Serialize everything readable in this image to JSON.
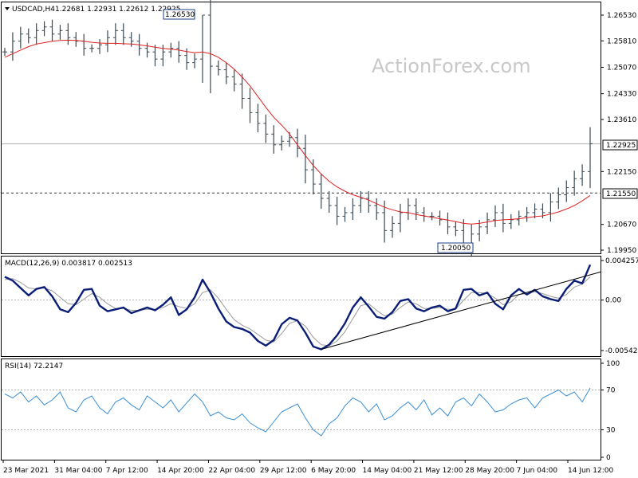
{
  "header": {
    "symbol": "USDCAD,H4",
    "ohlc": "1.22681 1.22931 1.22612 1.22925"
  },
  "watermark": "ActionForex.com",
  "colors": {
    "price_bars": "#3b4a54",
    "ma": "#e02020",
    "macd_line": "#0a1e78",
    "macd_signal": "#9a9a9a",
    "trendline": "#000000",
    "rsi": "#3a8fd6",
    "grid": "#b0b0b0"
  },
  "chart_data": [
    {
      "type": "line",
      "panel": "price",
      "x_tick_labels": [
        "23 Mar 2021",
        "31 Mar 04:00",
        "7 Apr 12:00",
        "14 Apr 20:00",
        "22 Apr 04:00",
        "29 Apr 12:00",
        "6 May 20:00",
        "14 May 04:00",
        "21 May 12:00",
        "28 May 20:00",
        "7 Jun 04:00",
        "14 Jun 12:00"
      ],
      "y_tick_labels": [
        "1.26530",
        "1.25810",
        "1.25070",
        "1.24330",
        "1.23610",
        "1.22925",
        "1.22150",
        "1.21550",
        "1.20670",
        "1.19950"
      ],
      "ylim": [
        1.1995,
        1.2653
      ],
      "annotations": {
        "high": "1.26530",
        "low": "1.20050",
        "support": "1.21550",
        "current": "1.22925"
      },
      "series": [
        {
          "values": [
            1.255,
            1.258,
            1.26,
            1.259,
            1.261,
            1.262,
            1.26,
            1.261,
            1.259,
            1.258,
            1.256,
            1.256,
            1.257,
            1.259,
            1.261,
            1.259,
            1.258,
            1.256,
            1.255,
            1.253,
            1.255,
            1.256,
            1.254,
            1.252,
            1.253,
            1.2653,
            1.251,
            1.25,
            1.248,
            1.246,
            1.242,
            1.238,
            1.235,
            1.232,
            1.229,
            1.23,
            1.231,
            1.228,
            1.222,
            1.218,
            1.214,
            1.212,
            1.209,
            1.21,
            1.212,
            1.214,
            1.212,
            1.21,
            1.205,
            1.207,
            1.21,
            1.212,
            1.21,
            1.209,
            1.209,
            1.208,
            1.206,
            1.205,
            1.2005,
            1.204,
            1.206,
            1.208,
            1.21,
            1.207,
            1.208,
            1.209,
            1.21,
            1.211,
            1.21,
            1.213,
            1.215,
            1.217,
            1.2195,
            1.2215,
            1.2293
          ]
        },
        {
          "values": [
            1.2535,
            1.2545,
            1.2555,
            1.2565,
            1.2572,
            1.2576,
            1.258,
            1.2582,
            1.2583,
            1.2582,
            1.258,
            1.2577,
            1.2575,
            1.2574,
            1.2574,
            1.2573,
            1.2572,
            1.257,
            1.2567,
            1.2563,
            1.256,
            1.2558,
            1.2555,
            1.2551,
            1.2548,
            1.255,
            1.2545,
            1.2535,
            1.252,
            1.2502,
            1.248,
            1.2455,
            1.2425,
            1.2395,
            1.2367,
            1.2345,
            1.232,
            1.229,
            1.226,
            1.2232,
            1.2208,
            1.2188,
            1.2172,
            1.216,
            1.215,
            1.2143,
            1.2135,
            1.2125,
            1.2115,
            1.2108,
            1.2102,
            1.21,
            1.2095,
            1.2091,
            1.2087,
            1.2083,
            1.2079,
            1.2075,
            1.207,
            1.2068,
            1.207,
            1.2074,
            1.2078,
            1.208,
            1.2081,
            1.2083,
            1.2086,
            1.2089,
            1.2091,
            1.2096,
            1.2102,
            1.211,
            1.212,
            1.2133,
            1.2148
          ]
        }
      ]
    },
    {
      "type": "line",
      "panel": "macd",
      "label": "MACD(12,26,9) 0.003817 0.002513",
      "y_tick_labels": [
        "0.004257",
        "0.00",
        "-0.005426"
      ],
      "ylim": [
        -0.005426,
        0.004257
      ],
      "series": [
        {
          "values": [
            0.0025,
            0.0021,
            0.0013,
            0.0005,
            0.0012,
            0.0014,
            0.0004,
            -0.001,
            -0.0013,
            -0.0003,
            0.0011,
            0.0012,
            -0.0006,
            -0.0012,
            -0.001,
            -0.0008,
            -0.0014,
            -0.0011,
            -0.0008,
            -0.0011,
            -0.0005,
            0.0003,
            -0.0016,
            -0.001,
            0.0003,
            0.0022,
            0.0008,
            -0.0009,
            -0.0023,
            -0.0029,
            -0.0031,
            -0.0035,
            -0.0044,
            -0.0049,
            -0.0043,
            -0.0026,
            -0.0019,
            -0.0022,
            -0.0035,
            -0.005,
            -0.0053,
            -0.0048,
            -0.0038,
            -0.0025,
            -0.0008,
            0.0003,
            -0.0007,
            -0.0018,
            -0.002,
            -0.0013,
            -0.0001,
            0.0001,
            -0.0009,
            -0.0012,
            -0.0008,
            -0.0006,
            -0.0012,
            -0.0009,
            0.0011,
            0.0012,
            0.0005,
            0.0008,
            -0.0004,
            -0.001,
            0.0005,
            0.0012,
            0.0006,
            0.0011,
            0.0004,
            0.0001,
            -0.0001,
            0.0012,
            0.0021,
            0.0018,
            0.0038
          ]
        },
        {
          "values": [
            0.0022,
            0.0023,
            0.0019,
            0.0013,
            0.0012,
            0.0013,
            0.001,
            0.0003,
            -0.0004,
            -0.0005,
            0.0001,
            0.0007,
            0.0003,
            -0.0004,
            -0.0009,
            -0.0009,
            -0.0011,
            -0.0011,
            -0.001,
            -0.001,
            -0.0008,
            -0.0004,
            -0.0007,
            -0.0009,
            -0.0004,
            0.0008,
            0.0011,
            0.0002,
            -0.001,
            -0.0021,
            -0.0027,
            -0.0031,
            -0.0037,
            -0.0043,
            -0.0045,
            -0.0036,
            -0.0025,
            -0.0022,
            -0.0028,
            -0.004,
            -0.0048,
            -0.0049,
            -0.0044,
            -0.0034,
            -0.002,
            -0.0006,
            -0.0004,
            -0.0011,
            -0.0017,
            -0.0015,
            -0.0008,
            -0.0002,
            -0.0004,
            -0.0009,
            -0.0009,
            -0.0008,
            -0.001,
            -0.001,
            0.0,
            0.0008,
            0.0008,
            0.0007,
            0.0002,
            -0.0005,
            -0.0002,
            0.0006,
            0.0007,
            0.0009,
            0.0007,
            0.0004,
            0.0002,
            0.0006,
            0.0014,
            0.0017,
            0.0025
          ]
        }
      ]
    },
    {
      "type": "line",
      "panel": "rsi",
      "label": "RSI(14) 72.2147",
      "y_tick_labels": [
        "100",
        "70",
        "30",
        "0"
      ],
      "ylim": [
        0,
        100
      ],
      "levels": [
        70,
        30
      ],
      "series": [
        {
          "values": [
            66,
            62,
            68,
            58,
            64,
            55,
            60,
            68,
            52,
            48,
            60,
            64,
            52,
            46,
            58,
            62,
            55,
            50,
            64,
            58,
            52,
            60,
            48,
            57,
            66,
            58,
            44,
            48,
            42,
            40,
            46,
            37,
            32,
            28,
            38,
            48,
            52,
            56,
            42,
            30,
            24,
            36,
            42,
            54,
            62,
            58,
            48,
            56,
            40,
            44,
            52,
            58,
            50,
            60,
            45,
            52,
            44,
            58,
            62,
            54,
            66,
            58,
            48,
            50,
            56,
            60,
            62,
            52,
            62,
            66,
            70,
            64,
            68,
            58,
            72
          ]
        }
      ]
    }
  ]
}
